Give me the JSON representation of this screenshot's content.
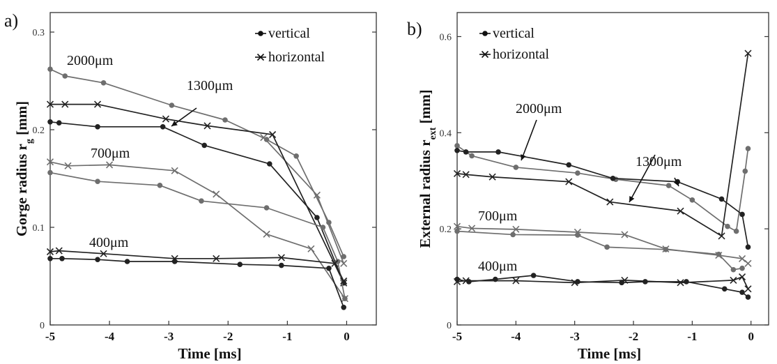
{
  "chart_data": [
    {
      "type": "line",
      "panel_label": "a)",
      "xlabel": "Time [ms]",
      "ylabel_main": "Gorge radius r",
      "ylabel_sub": "g",
      "ylabel_unit": " [mm]",
      "xlim": [
        -5,
        0.5
      ],
      "ylim": [
        0,
        0.32
      ],
      "xticks": [
        -5,
        -4,
        -3,
        -2,
        -1,
        0
      ],
      "xtick_labels": [
        "-5",
        "-4",
        "-3",
        "-2",
        "-1",
        "0"
      ],
      "yticks": [
        0,
        0.1,
        0.2,
        0.3
      ],
      "ytick_labels": [
        "0",
        "0.1",
        "0.2",
        "0.3"
      ],
      "grid": false,
      "legend_position": "top-right",
      "legend": [
        {
          "label": "vertical",
          "marker": "dot"
        },
        {
          "label": "horizontal",
          "marker": "x"
        }
      ],
      "annotations": [
        {
          "text": "2000μm"
        },
        {
          "text": "1300μm"
        },
        {
          "text": "700μm"
        },
        {
          "text": "400μm"
        }
      ],
      "series": [
        {
          "group": "2000μm",
          "marker": "dot",
          "color": "#6e6e6e",
          "x": [
            -5.0,
            -4.75,
            -4.1,
            -2.95,
            -2.05,
            -1.35,
            -0.85,
            -0.3,
            -0.05
          ],
          "y": [
            0.262,
            0.255,
            0.248,
            0.225,
            0.21,
            0.19,
            0.173,
            0.105,
            0.07
          ]
        },
        {
          "group": "2000μm",
          "marker": "x",
          "color": "#6e6e6e",
          "x": [
            -1.4,
            -0.5,
            -0.05
          ],
          "y": [
            0.192,
            0.133,
            0.063
          ]
        },
        {
          "group": "1300μm",
          "marker": "dot",
          "color": "#222222",
          "x": [
            -5.0,
            -4.85,
            -4.2,
            -3.1,
            -2.4,
            -1.3,
            -0.5,
            -0.05
          ],
          "y": [
            0.208,
            0.207,
            0.203,
            0.203,
            0.184,
            0.165,
            0.11,
            0.043
          ]
        },
        {
          "group": "1300μm",
          "marker": "x",
          "color": "#222222",
          "x": [
            -5.0,
            -4.75,
            -4.2,
            -3.05,
            -2.35,
            -1.25,
            -0.05
          ],
          "y": [
            0.226,
            0.226,
            0.226,
            0.211,
            0.204,
            0.195,
            0.043
          ]
        },
        {
          "group": "700μm",
          "marker": "dot",
          "color": "#6e6e6e",
          "x": [
            -5.0,
            -4.2,
            -3.15,
            -2.45,
            -1.35,
            -0.4,
            -0.15,
            -0.03
          ],
          "y": [
            0.156,
            0.147,
            0.143,
            0.127,
            0.12,
            0.1,
            0.065,
            0.027
          ]
        },
        {
          "group": "700μm",
          "marker": "x",
          "color": "#6e6e6e",
          "x": [
            -5.0,
            -4.7,
            -4.0,
            -2.9,
            -2.2,
            -1.35,
            -0.6,
            -0.03
          ],
          "y": [
            0.167,
            0.163,
            0.164,
            0.158,
            0.134,
            0.093,
            0.078,
            0.027
          ]
        },
        {
          "group": "400μm",
          "marker": "dot",
          "color": "#222222",
          "x": [
            -5.0,
            -4.8,
            -4.2,
            -3.7,
            -2.9,
            -1.8,
            -1.1,
            -0.3,
            -0.05
          ],
          "y": [
            0.068,
            0.068,
            0.067,
            0.065,
            0.065,
            0.062,
            0.061,
            0.058,
            0.018
          ]
        },
        {
          "group": "400μm",
          "marker": "x",
          "color": "#222222",
          "x": [
            -5.0,
            -4.85,
            -4.1,
            -2.9,
            -2.2,
            -1.1,
            -0.2,
            -0.05
          ],
          "y": [
            0.075,
            0.076,
            0.073,
            0.068,
            0.068,
            0.069,
            0.063,
            0.045
          ]
        }
      ]
    },
    {
      "type": "line",
      "panel_label": "b)",
      "xlabel": "Time [ms]",
      "ylabel_main": "External radius r",
      "ylabel_sub": "ext",
      "ylabel_unit": " [mm]",
      "xlim": [
        -5,
        0.3
      ],
      "ylim": [
        0,
        0.65
      ],
      "xticks": [
        -5,
        -4,
        -3,
        -2,
        -1,
        0
      ],
      "xtick_labels": [
        "-5",
        "-4",
        "-3",
        "-2",
        "-1",
        "0"
      ],
      "yticks": [
        0,
        0.2,
        0.4,
        0.6
      ],
      "ytick_labels": [
        "0",
        "0.2",
        "0.4",
        "0.6"
      ],
      "grid": false,
      "legend_position": "top-left",
      "legend": [
        {
          "label": "vertical",
          "marker": "dot"
        },
        {
          "label": "horizontal",
          "marker": "x"
        }
      ],
      "annotations": [
        {
          "text": "2000μm"
        },
        {
          "text": "1300μm"
        },
        {
          "text": "700μm"
        },
        {
          "text": "400μm"
        }
      ],
      "series": [
        {
          "group": "2000μm",
          "marker": "dot",
          "color": "#6e6e6e",
          "x": [
            -5.0,
            -4.75,
            -4.0,
            -2.95,
            -2.3,
            -1.4,
            -1.0,
            -0.4,
            -0.25,
            -0.1,
            -0.05
          ],
          "y": [
            0.373,
            0.352,
            0.328,
            0.316,
            0.303,
            0.29,
            0.26,
            0.205,
            0.195,
            0.32,
            0.367
          ]
        },
        {
          "group": "1300μm",
          "marker": "dot",
          "color": "#222222",
          "x": [
            -5.0,
            -4.85,
            -4.3,
            -3.1,
            -2.35,
            -1.25,
            -0.5,
            -0.15,
            -0.05
          ],
          "y": [
            0.363,
            0.36,
            0.36,
            0.333,
            0.305,
            0.298,
            0.262,
            0.23,
            0.162
          ]
        },
        {
          "group": "1300μm",
          "marker": "x",
          "color": "#222222",
          "x": [
            -5.0,
            -4.85,
            -4.4,
            -3.1,
            -2.4,
            -1.2,
            -0.5,
            -0.05
          ],
          "y": [
            0.315,
            0.313,
            0.308,
            0.298,
            0.256,
            0.237,
            0.185,
            0.565
          ]
        },
        {
          "group": "700μm",
          "marker": "dot",
          "color": "#6e6e6e",
          "x": [
            -5.0,
            -4.05,
            -2.95,
            -2.45,
            -1.45,
            -0.55,
            -0.3,
            -0.15
          ],
          "y": [
            0.195,
            0.188,
            0.187,
            0.162,
            0.157,
            0.147,
            0.115,
            0.118
          ]
        },
        {
          "group": "700μm",
          "marker": "x",
          "color": "#6e6e6e",
          "x": [
            -5.0,
            -4.75,
            -4.0,
            -2.95,
            -2.15,
            -1.45,
            -0.55,
            -0.15,
            -0.05
          ],
          "y": [
            0.205,
            0.201,
            0.199,
            0.193,
            0.188,
            0.158,
            0.145,
            0.138,
            0.128
          ]
        },
        {
          "group": "400μm",
          "marker": "dot",
          "color": "#222222",
          "x": [
            -5.0,
            -4.8,
            -4.35,
            -3.7,
            -2.95,
            -2.2,
            -1.8,
            -1.1,
            -0.45,
            -0.15,
            -0.05
          ],
          "y": [
            0.095,
            0.09,
            0.095,
            0.103,
            0.09,
            0.088,
            0.09,
            0.09,
            0.075,
            0.068,
            0.058
          ]
        },
        {
          "group": "400μm",
          "marker": "x",
          "color": "#222222",
          "x": [
            -5.0,
            -4.85,
            -4.0,
            -3.0,
            -2.15,
            -1.2,
            -0.3,
            -0.15,
            -0.05
          ],
          "y": [
            0.09,
            0.092,
            0.092,
            0.088,
            0.093,
            0.088,
            0.093,
            0.1,
            0.075
          ]
        }
      ]
    }
  ]
}
